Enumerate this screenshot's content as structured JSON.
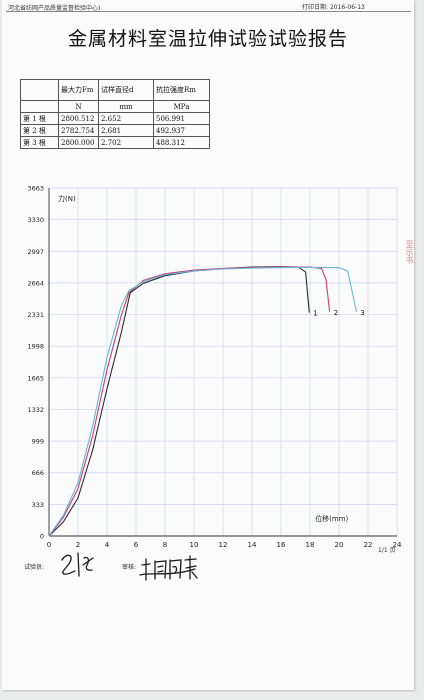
{
  "header": {
    "org": "河北省纺网产品质量监督检验中心)",
    "print_date_label": "打印日期:",
    "print_date": "2016-06-13"
  },
  "title": "金属材料室温拉伸试验试验报告",
  "results_table": {
    "columns": [
      "",
      "最大力Fm",
      "试样直径d",
      "抗拉强度Rm"
    ],
    "units": [
      "",
      "N",
      "mm",
      "MPa"
    ],
    "rows": [
      [
        "第 1 根",
        "2800.512",
        "2.652",
        "506.991"
      ],
      [
        "第 2 根",
        "2782.754",
        "2.681",
        "492.937"
      ],
      [
        "第 3 根",
        "2800.000",
        "2.702",
        "488.312"
      ]
    ]
  },
  "chart_data": {
    "type": "line",
    "ylabel": "力(N)",
    "xlabel": "位移(mm)",
    "xlim": [
      0,
      24
    ],
    "ylim": [
      0,
      3663
    ],
    "x_ticks": [
      0,
      2,
      4,
      6,
      8,
      10,
      12,
      14,
      16,
      18,
      20,
      22,
      24
    ],
    "y_ticks": [
      0,
      333,
      666,
      999,
      1332,
      1665,
      1998,
      2331,
      2664,
      2997,
      3330,
      3663
    ],
    "grid": true,
    "series": [
      {
        "name": "1",
        "color": "#2a2a2a",
        "points": [
          [
            0,
            0
          ],
          [
            1,
            150
          ],
          [
            2,
            400
          ],
          [
            3,
            900
          ],
          [
            4,
            1550
          ],
          [
            5,
            2150
          ],
          [
            5.6,
            2560
          ],
          [
            6.5,
            2660
          ],
          [
            8,
            2740
          ],
          [
            10,
            2790
          ],
          [
            12,
            2815
          ],
          [
            14,
            2830
          ],
          [
            16,
            2835
          ],
          [
            17.2,
            2830
          ],
          [
            17.7,
            2780
          ],
          [
            17.95,
            2350
          ]
        ]
      },
      {
        "name": "2",
        "color": "#c83c78",
        "points": [
          [
            0,
            0
          ],
          [
            1,
            200
          ],
          [
            2,
            500
          ],
          [
            3,
            1050
          ],
          [
            4,
            1750
          ],
          [
            5,
            2330
          ],
          [
            5.5,
            2560
          ],
          [
            6.5,
            2690
          ],
          [
            8,
            2760
          ],
          [
            10,
            2800
          ],
          [
            12,
            2815
          ],
          [
            14,
            2825
          ],
          [
            16,
            2830
          ],
          [
            18,
            2830
          ],
          [
            18.8,
            2815
          ],
          [
            19.1,
            2700
          ],
          [
            19.35,
            2360
          ]
        ]
      },
      {
        "name": "3",
        "color": "#6ab4d6",
        "points": [
          [
            0,
            0
          ],
          [
            1,
            220
          ],
          [
            2,
            560
          ],
          [
            3,
            1150
          ],
          [
            4,
            1880
          ],
          [
            5,
            2430
          ],
          [
            5.5,
            2580
          ],
          [
            6.5,
            2680
          ],
          [
            8,
            2750
          ],
          [
            10,
            2790
          ],
          [
            12,
            2810
          ],
          [
            14,
            2820
          ],
          [
            16,
            2825
          ],
          [
            18,
            2827
          ],
          [
            20,
            2825
          ],
          [
            20.6,
            2790
          ],
          [
            20.9,
            2580
          ],
          [
            21.2,
            2360
          ]
        ]
      }
    ]
  },
  "signatures": {
    "tester_label": "试验员:",
    "reviewer_label": "审核:"
  },
  "page_number": "1/1 页",
  "stamp_text": "至示书"
}
